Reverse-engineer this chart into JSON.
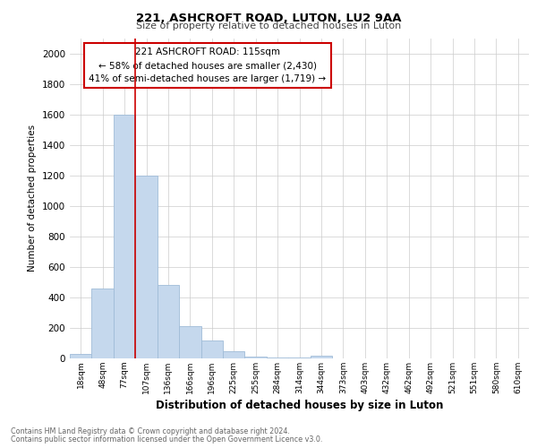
{
  "title1": "221, ASHCROFT ROAD, LUTON, LU2 9AA",
  "title2": "Size of property relative to detached houses in Luton",
  "xlabel": "Distribution of detached houses by size in Luton",
  "ylabel": "Number of detached properties",
  "annotation_line1": "221 ASHCROFT ROAD: 115sqm",
  "annotation_line2": "← 58% of detached houses are smaller (2,430)",
  "annotation_line3": "41% of semi-detached houses are larger (1,719) →",
  "categories": [
    "18sqm",
    "48sqm",
    "77sqm",
    "107sqm",
    "136sqm",
    "166sqm",
    "196sqm",
    "225sqm",
    "255sqm",
    "284sqm",
    "314sqm",
    "344sqm",
    "373sqm",
    "403sqm",
    "432sqm",
    "462sqm",
    "492sqm",
    "521sqm",
    "551sqm",
    "580sqm",
    "610sqm"
  ],
  "values": [
    30,
    460,
    1600,
    1200,
    480,
    210,
    120,
    45,
    10,
    5,
    5,
    15,
    0,
    0,
    0,
    0,
    0,
    0,
    0,
    0,
    0
  ],
  "bar_color": "#c5d8ed",
  "bar_edge_color": "#a0bcd8",
  "property_line_color": "#cc0000",
  "annotation_box_color": "#cc0000",
  "ylim": [
    0,
    2100
  ],
  "yticks": [
    0,
    200,
    400,
    600,
    800,
    1000,
    1200,
    1400,
    1600,
    1800,
    2000
  ],
  "property_line_x": 2.5,
  "footer_line1": "Contains HM Land Registry data © Crown copyright and database right 2024.",
  "footer_line2": "Contains public sector information licensed under the Open Government Licence v3.0.",
  "background_color": "#ffffff",
  "grid_color": "#cccccc"
}
